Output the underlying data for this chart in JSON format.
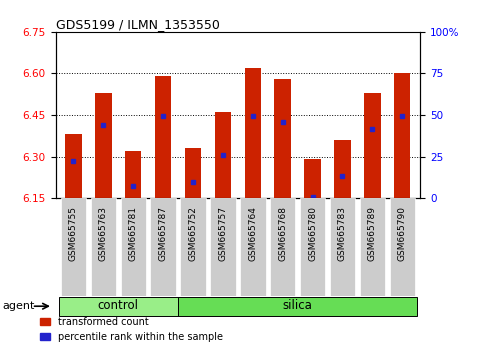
{
  "title": "GDS5199 / ILMN_1353550",
  "samples": [
    "GSM665755",
    "GSM665763",
    "GSM665781",
    "GSM665787",
    "GSM665752",
    "GSM665757",
    "GSM665764",
    "GSM665768",
    "GSM665780",
    "GSM665783",
    "GSM665789",
    "GSM665790"
  ],
  "groups": [
    "control",
    "control",
    "control",
    "control",
    "silica",
    "silica",
    "silica",
    "silica",
    "silica",
    "silica",
    "silica",
    "silica"
  ],
  "transformed_count": [
    6.38,
    6.53,
    6.32,
    6.59,
    6.33,
    6.46,
    6.62,
    6.58,
    6.29,
    6.36,
    6.53,
    6.6
  ],
  "percentile_rank_val": [
    6.285,
    6.415,
    6.195,
    6.445,
    6.21,
    6.305,
    6.445,
    6.425,
    6.155,
    6.23,
    6.4,
    6.445
  ],
  "ylim_left": [
    6.15,
    6.75
  ],
  "ylim_right": [
    0,
    100
  ],
  "yticks_left": [
    6.15,
    6.3,
    6.45,
    6.6,
    6.75
  ],
  "yticks_right": [
    0,
    25,
    50,
    75,
    100
  ],
  "bar_color": "#cc2200",
  "dot_color": "#2222cc",
  "control_color": "#99ee88",
  "silica_color": "#66dd55",
  "tick_bg_color": "#cccccc",
  "agent_label": "agent",
  "legend_items": [
    "transformed count",
    "percentile rank within the sample"
  ],
  "bar_width": 0.55,
  "baseline": 6.15,
  "figsize": [
    4.83,
    3.54
  ],
  "dpi": 100
}
